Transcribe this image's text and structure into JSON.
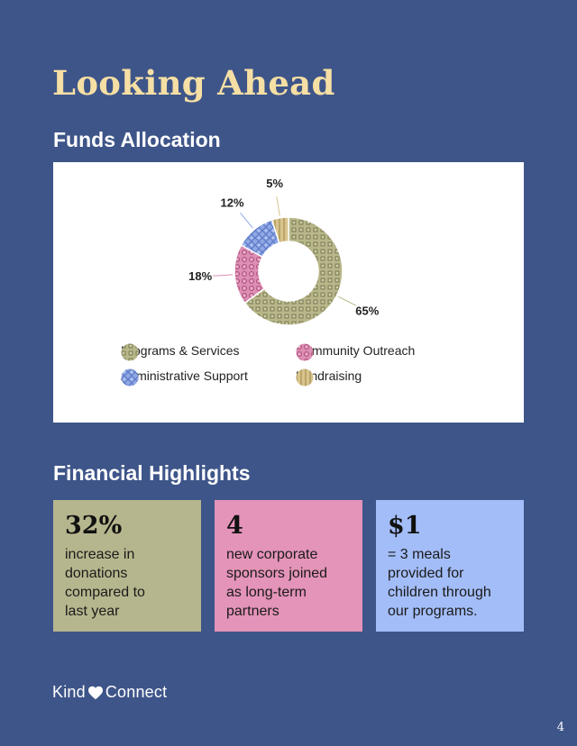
{
  "title": "Looking Ahead",
  "funds_heading": "Funds Allocation",
  "highlights_heading": "Financial Highlights",
  "chart_data": {
    "type": "pie",
    "variant": "donut",
    "title": "",
    "categories": [
      "Programs & Services",
      "Community Outreach",
      "Administrative Support",
      "Fundraising"
    ],
    "values": [
      65,
      18,
      12,
      5
    ],
    "labels": [
      "65%",
      "18%",
      "12%",
      "5%"
    ],
    "colors": [
      "#b8b78a",
      "#dc8fb3",
      "#8fa8e6",
      "#d8c48c"
    ],
    "legend_position": "bottom"
  },
  "legend": [
    {
      "label": "Programs & Services",
      "color": "#b8b78a"
    },
    {
      "label": "Community Outreach",
      "color": "#dc8fb3"
    },
    {
      "label": "Administrative Support",
      "color": "#8fa8e6"
    },
    {
      "label": "Fundraising",
      "color": "#d8c48c"
    }
  ],
  "highlights": [
    {
      "value": "32%",
      "lines": [
        "increase in",
        "donations",
        "compared to",
        "last year"
      ],
      "color": "#b6b68e"
    },
    {
      "value": "4",
      "lines": [
        "new corporate",
        "sponsors joined",
        "as long-term",
        "partners"
      ],
      "color": "#e493b9"
    },
    {
      "value": "$1",
      "lines": [
        "= 3 meals",
        "provided for",
        "children through",
        "our programs."
      ],
      "color": "#a3bdf8"
    }
  ],
  "logo": {
    "left": "Kind",
    "right": "Connect",
    "icon": "heart-icon"
  },
  "page_number": "4"
}
